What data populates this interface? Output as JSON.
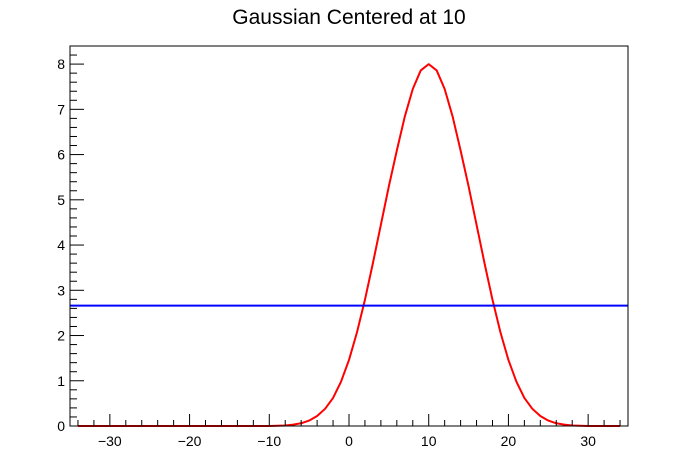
{
  "chart_data": {
    "type": "line",
    "title": "Gaussian Centered at 10",
    "xlabel": "",
    "ylabel": "",
    "xlim": [
      -35,
      35
    ],
    "ylim": [
      0,
      8.4
    ],
    "x_ticks": [
      -30,
      -20,
      -10,
      0,
      10,
      20,
      30
    ],
    "x_tick_labels": [
      "−30",
      "−20",
      "−10",
      "0",
      "10",
      "20",
      "30"
    ],
    "y_ticks": [
      0,
      1,
      2,
      3,
      4,
      5,
      6,
      7,
      8
    ],
    "y_tick_labels": [
      "0",
      "1",
      "2",
      "3",
      "4",
      "5",
      "6",
      "7",
      "8"
    ],
    "grid": false,
    "legend": "none",
    "series": [
      {
        "color": "#ff0000",
        "x": [
          -34,
          -32,
          -30,
          -28,
          -26,
          -24,
          -22,
          -20,
          -18,
          -16,
          -14,
          -12,
          -10,
          -8,
          -7,
          -6,
          -5,
          -4,
          -3,
          -2,
          -1,
          0,
          1,
          2,
          3,
          4,
          5,
          6,
          7,
          8,
          9,
          10,
          11,
          12,
          13,
          14,
          15,
          16,
          17,
          18,
          19,
          20,
          21,
          22,
          23,
          24,
          25,
          26,
          27,
          28,
          30,
          32,
          34
        ],
        "y": [
          0,
          0,
          0,
          0,
          0,
          0,
          0,
          0,
          0,
          0,
          0,
          0,
          0,
          0.01,
          0.03,
          0.06,
          0.12,
          0.22,
          0.38,
          0.62,
          0.98,
          1.46,
          2.07,
          2.79,
          3.6,
          4.45,
          5.3,
          6.09,
          6.84,
          7.45,
          7.86,
          8.0,
          7.86,
          7.45,
          6.84,
          6.09,
          5.3,
          4.45,
          3.6,
          2.79,
          2.07,
          1.46,
          0.98,
          0.62,
          0.38,
          0.22,
          0.12,
          0.06,
          0.03,
          0.01,
          0,
          0,
          0
        ]
      },
      {
        "color": "#0000ff",
        "x": [
          -35,
          35
        ],
        "y": [
          2.66,
          2.66
        ]
      }
    ]
  }
}
